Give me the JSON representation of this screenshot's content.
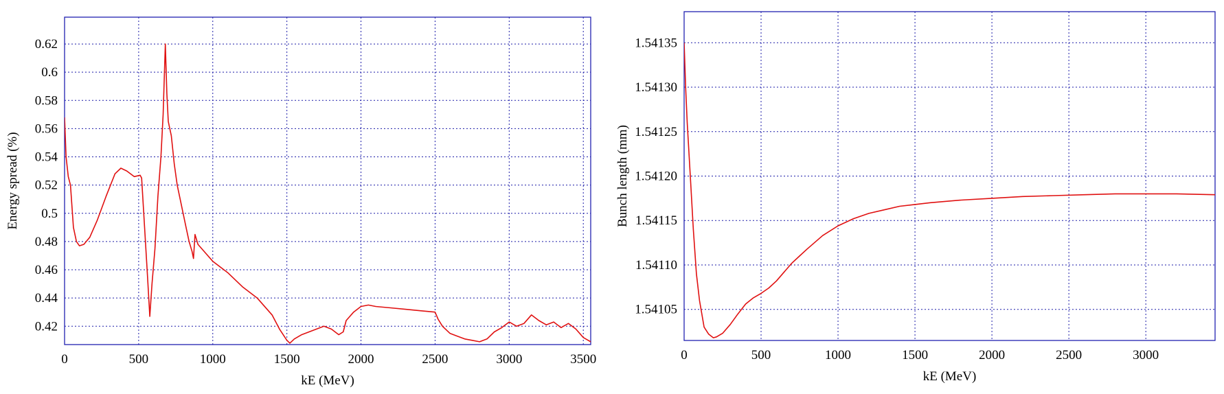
{
  "chart_data": [
    {
      "type": "line",
      "xlabel": "kE (MeV)",
      "ylabel": "Energy spread (%)",
      "xlim": [
        0,
        3550
      ],
      "ylim": [
        0.407,
        0.639
      ],
      "xticks": [
        0,
        500,
        1000,
        1500,
        2000,
        2500,
        3000,
        3500
      ],
      "yticks": [
        0.42,
        0.44,
        0.46,
        0.48,
        0.5,
        0.52,
        0.54,
        0.56,
        0.58,
        0.6,
        0.62
      ],
      "ytick_labels": [
        "0.42",
        "0.44",
        "0.46",
        "0.48",
        "0.5",
        "0.52",
        "0.54",
        "0.56",
        "0.58",
        "0.6",
        "0.62"
      ],
      "grid": true,
      "color": "#e01010",
      "series": [
        {
          "x": [
            0,
            10,
            25,
            40,
            60,
            80,
            100,
            130,
            170,
            220,
            280,
            340,
            380,
            420,
            470,
            510,
            520,
            540,
            560,
            575,
            590,
            610,
            630,
            650,
            665,
            680,
            690,
            700,
            710,
            720,
            740,
            760,
            780,
            800,
            820,
            840,
            860,
            870,
            880,
            900,
            950,
            1000,
            1100,
            1200,
            1300,
            1400,
            1450,
            1500,
            1520,
            1550,
            1600,
            1650,
            1700,
            1750,
            1800,
            1850,
            1880,
            1900,
            1950,
            2000,
            2050,
            2100,
            2200,
            2300,
            2400,
            2500,
            2520,
            2550,
            2600,
            2650,
            2700,
            2750,
            2800,
            2850,
            2900,
            2950,
            3000,
            3050,
            3100,
            3150,
            3200,
            3250,
            3300,
            3350,
            3400,
            3450,
            3500,
            3550
          ],
          "values": [
            0.568,
            0.54,
            0.526,
            0.52,
            0.49,
            0.48,
            0.477,
            0.478,
            0.483,
            0.495,
            0.512,
            0.528,
            0.532,
            0.53,
            0.526,
            0.527,
            0.525,
            0.49,
            0.455,
            0.427,
            0.45,
            0.475,
            0.512,
            0.54,
            0.57,
            0.62,
            0.585,
            0.565,
            0.56,
            0.555,
            0.535,
            0.52,
            0.51,
            0.5,
            0.49,
            0.48,
            0.473,
            0.468,
            0.485,
            0.478,
            0.472,
            0.466,
            0.458,
            0.448,
            0.44,
            0.428,
            0.418,
            0.41,
            0.408,
            0.411,
            0.414,
            0.416,
            0.418,
            0.42,
            0.418,
            0.414,
            0.416,
            0.424,
            0.43,
            0.434,
            0.435,
            0.434,
            0.433,
            0.432,
            0.431,
            0.43,
            0.425,
            0.42,
            0.415,
            0.413,
            0.411,
            0.41,
            0.409,
            0.411,
            0.416,
            0.419,
            0.423,
            0.42,
            0.422,
            0.428,
            0.424,
            0.421,
            0.423,
            0.419,
            0.422,
            0.418,
            0.412,
            0.409
          ]
        }
      ]
    },
    {
      "type": "line",
      "xlabel": "kE (MeV)",
      "ylabel": "Bunch length (mm)",
      "xlim": [
        0,
        3450
      ],
      "ylim": [
        1.541015,
        1.541385
      ],
      "xticks": [
        0,
        500,
        1000,
        1500,
        2000,
        2500,
        3000,
        3500
      ],
      "yticks": [
        1.54105,
        1.5411,
        1.54115,
        1.5412,
        1.54125,
        1.5413,
        1.54135
      ],
      "ytick_labels": [
        "1.54105",
        "1.54110",
        "1.54115",
        "1.54120",
        "1.54125",
        "1.54130",
        "1.54135"
      ],
      "grid": true,
      "color": "#e01010",
      "series": [
        {
          "x": [
            0,
            10,
            20,
            40,
            60,
            80,
            100,
            130,
            160,
            190,
            210,
            250,
            300,
            350,
            400,
            450,
            500,
            550,
            600,
            650,
            700,
            750,
            800,
            900,
            1000,
            1100,
            1200,
            1300,
            1400,
            1500,
            1600,
            1800,
            2000,
            2200,
            2400,
            2600,
            2800,
            3000,
            3200,
            3450
          ],
          "values": [
            1.54135,
            1.5413,
            1.54126,
            1.5412,
            1.54114,
            1.54109,
            1.54106,
            1.54103,
            1.541022,
            1.541018,
            1.541019,
            1.541023,
            1.541033,
            1.541045,
            1.541056,
            1.541063,
            1.541068,
            1.541074,
            1.541082,
            1.541092,
            1.541102,
            1.54111,
            1.541118,
            1.541133,
            1.541144,
            1.541152,
            1.541158,
            1.541162,
            1.541166,
            1.541168,
            1.54117,
            1.541173,
            1.541175,
            1.541177,
            1.541178,
            1.541179,
            1.54118,
            1.54118,
            1.54118,
            1.541179
          ]
        }
      ]
    }
  ]
}
